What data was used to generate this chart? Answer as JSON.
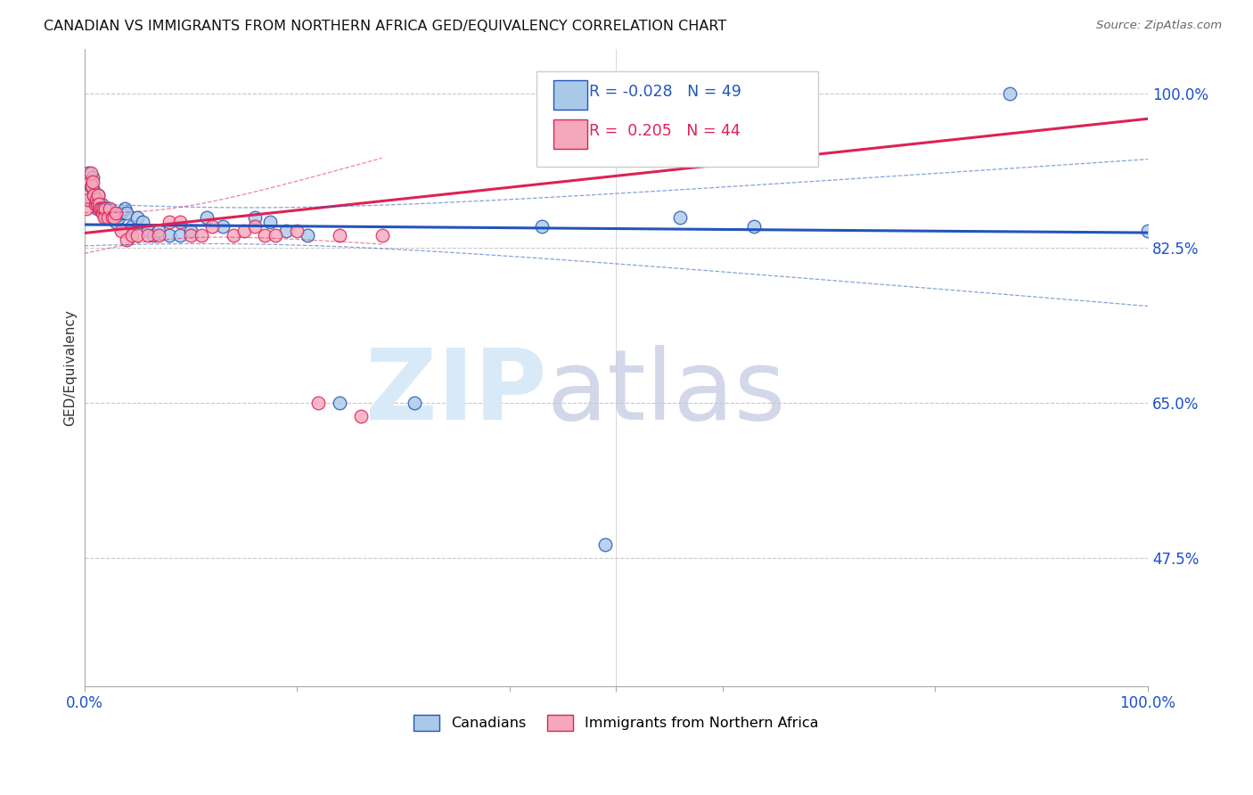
{
  "title": "CANADIAN VS IMMIGRANTS FROM NORTHERN AFRICA GED/EQUIVALENCY CORRELATION CHART",
  "source": "Source: ZipAtlas.com",
  "ylabel": "GED/Equivalency",
  "xlim": [
    0.0,
    1.0
  ],
  "ylim": [
    0.33,
    1.05
  ],
  "yticks": [
    0.475,
    0.65,
    0.825,
    1.0
  ],
  "ytick_labels": [
    "47.5%",
    "65.0%",
    "82.5%",
    "100.0%"
  ],
  "xticks": [
    0.0,
    0.2,
    0.4,
    0.5,
    0.6,
    0.8,
    1.0
  ],
  "xtick_labels": [
    "0.0%",
    "",
    "",
    "",
    "",
    "",
    "100.0%"
  ],
  "legend_canadian": "Canadians",
  "legend_immigrant": "Immigrants from Northern Africa",
  "R_canadian": -0.028,
  "N_canadian": 49,
  "R_immigrant": 0.205,
  "N_immigrant": 44,
  "canadian_color": "#aac8e8",
  "immigrant_color": "#f5a8bc",
  "canadian_line_color": "#2255bb",
  "immigrant_line_color": "#dd2255",
  "background_color": "#ffffff",
  "canadian_x": [
    0.002,
    0.004,
    0.006,
    0.007,
    0.008,
    0.009,
    0.01,
    0.011,
    0.012,
    0.013,
    0.014,
    0.015,
    0.016,
    0.017,
    0.018,
    0.019,
    0.02,
    0.022,
    0.024,
    0.026,
    0.028,
    0.03,
    0.032,
    0.035,
    0.038,
    0.04,
    0.045,
    0.05,
    0.055,
    0.06,
    0.065,
    0.07,
    0.08,
    0.09,
    0.1,
    0.115,
    0.13,
    0.16,
    0.175,
    0.19,
    0.21,
    0.24,
    0.31,
    0.43,
    0.49,
    0.56,
    0.63,
    0.87,
    1.0
  ],
  "canadian_y": [
    0.9,
    0.91,
    0.895,
    0.88,
    0.905,
    0.89,
    0.875,
    0.88,
    0.87,
    0.885,
    0.875,
    0.87,
    0.875,
    0.87,
    0.865,
    0.87,
    0.86,
    0.87,
    0.86,
    0.865,
    0.86,
    0.855,
    0.86,
    0.865,
    0.87,
    0.865,
    0.85,
    0.86,
    0.855,
    0.845,
    0.84,
    0.845,
    0.84,
    0.84,
    0.845,
    0.86,
    0.85,
    0.86,
    0.855,
    0.845,
    0.84,
    0.65,
    0.65,
    0.85,
    0.49,
    0.86,
    0.85,
    1.0,
    0.845
  ],
  "immigrant_x": [
    0.002,
    0.004,
    0.005,
    0.006,
    0.007,
    0.008,
    0.009,
    0.01,
    0.011,
    0.012,
    0.013,
    0.014,
    0.015,
    0.016,
    0.017,
    0.018,
    0.019,
    0.02,
    0.022,
    0.024,
    0.026,
    0.028,
    0.03,
    0.035,
    0.04,
    0.045,
    0.05,
    0.06,
    0.07,
    0.08,
    0.09,
    0.1,
    0.11,
    0.12,
    0.14,
    0.15,
    0.16,
    0.17,
    0.18,
    0.2,
    0.22,
    0.24,
    0.26,
    0.28
  ],
  "immigrant_y": [
    0.87,
    0.88,
    0.9,
    0.91,
    0.895,
    0.9,
    0.885,
    0.875,
    0.88,
    0.875,
    0.885,
    0.875,
    0.87,
    0.87,
    0.865,
    0.87,
    0.86,
    0.87,
    0.86,
    0.87,
    0.86,
    0.86,
    0.865,
    0.845,
    0.835,
    0.84,
    0.84,
    0.84,
    0.84,
    0.855,
    0.855,
    0.84,
    0.84,
    0.85,
    0.84,
    0.845,
    0.85,
    0.84,
    0.84,
    0.845,
    0.65,
    0.84,
    0.635,
    0.84
  ]
}
